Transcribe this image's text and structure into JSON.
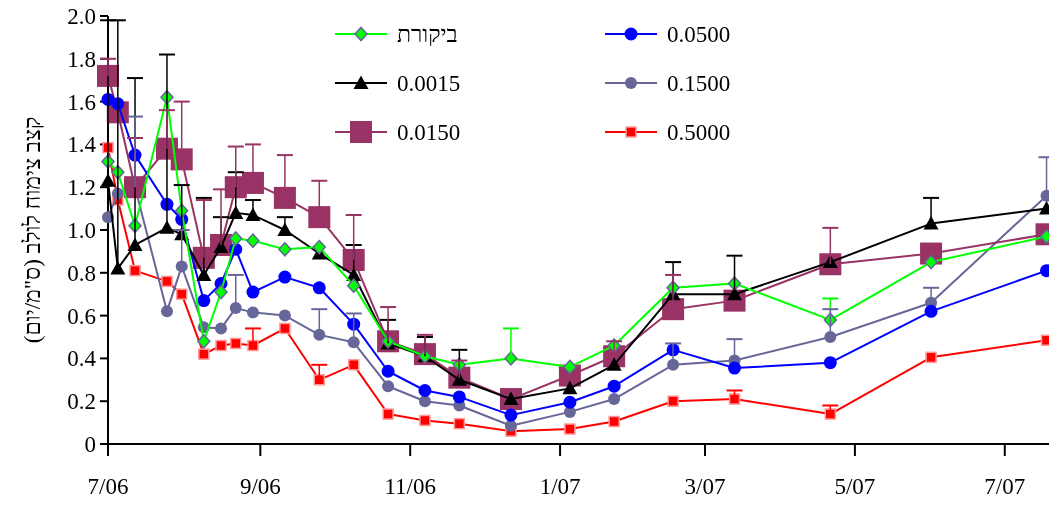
{
  "chart_data": {
    "type": "line",
    "ylabel": "קצב צימוח לולב (ס\"מ/יום)",
    "x": [
      "2006-07-01",
      "2006-07-05",
      "2006-07-12",
      "2006-07-25",
      "2006-07-31",
      "2006-08-09",
      "2006-08-16",
      "2006-08-22",
      "2006-08-29",
      "2006-09-11",
      "2006-09-25",
      "2006-10-09",
      "2006-10-23",
      "2006-11-07",
      "2006-11-21",
      "2006-12-12",
      "2007-01-05",
      "2007-01-23",
      "2007-02-16",
      "2007-03-13",
      "2007-04-21",
      "2007-06-01",
      "2007-07-18"
    ],
    "xlim": [
      "2006-07-01",
      "2007-07-19"
    ],
    "xticks": [
      {
        "value": "2006-07-01",
        "label": "7/06"
      },
      {
        "value": "2006-09-01",
        "label": "9/06"
      },
      {
        "value": "2006-11-01",
        "label": "11/06"
      },
      {
        "value": "2007-01-01",
        "label": "1/07"
      },
      {
        "value": "2007-03-01",
        "label": "3/07"
      },
      {
        "value": "2007-05-01",
        "label": "5/07"
      },
      {
        "value": "2007-07-01",
        "label": "7/07"
      }
    ],
    "ylim": [
      0,
      2
    ],
    "yticks": [
      0,
      0.2,
      0.4,
      0.6,
      0.8,
      {
        "value": 1,
        "label": "1.0"
      },
      1.2,
      1.4,
      1.6,
      1.8,
      {
        "value": 2,
        "label": "2.0"
      }
    ],
    "grid": false,
    "legend": "top",
    "line_style": "solid",
    "series": [
      {
        "name": "ביקורת",
        "color": "#00ff00",
        "marker": "diamond",
        "values": [
          1.32,
          1.27,
          1.02,
          1.62,
          1.09,
          0.48,
          0.71,
          0.96,
          0.95,
          0.91,
          0.92,
          0.74,
          0.48,
          0.41,
          0.37,
          0.4,
          0.36,
          0.46,
          0.73,
          0.75,
          0.58,
          0.85,
          0.97
        ],
        "errors": [
          null,
          null,
          null,
          null,
          null,
          null,
          null,
          null,
          null,
          null,
          null,
          null,
          null,
          null,
          null,
          [
            0.4,
            0.54
          ],
          null,
          null,
          null,
          null,
          [
            0.58,
            0.68
          ],
          null,
          null
        ]
      },
      {
        "name": "0.0015",
        "color": "#000000",
        "marker": "triangle",
        "values": [
          1.23,
          0.82,
          0.93,
          1.01,
          0.98,
          0.79,
          0.92,
          1.08,
          1.07,
          1.0,
          0.89,
          0.79,
          0.47,
          0.41,
          0.3,
          0.21,
          0.26,
          0.37,
          0.7,
          0.7,
          0.85,
          1.03,
          1.1
        ],
        "errors": [
          [
            1.23,
            1.98
          ],
          [
            0.82,
            1.98
          ],
          [
            0.93,
            1.71
          ],
          [
            1.01,
            1.82
          ],
          [
            0.98,
            1.21
          ],
          [
            0.79,
            1.15
          ],
          [
            0.92,
            1.06
          ],
          [
            1.08,
            1.27
          ],
          [
            1.07,
            1.14
          ],
          [
            1.0,
            1.06
          ],
          null,
          [
            0.79,
            0.93
          ],
          [
            0.47,
            0.58
          ],
          [
            0.41,
            0.5
          ],
          [
            0.3,
            0.44
          ],
          null,
          null,
          null,
          [
            0.7,
            0.85
          ],
          [
            0.7,
            0.88
          ],
          null,
          [
            1.03,
            1.15
          ],
          null
        ]
      },
      {
        "name": "0.0150",
        "color": "#993366",
        "marker": "square",
        "values": [
          1.72,
          1.55,
          1.2,
          1.38,
          1.33,
          0.87,
          0.93,
          1.2,
          1.22,
          1.15,
          1.06,
          0.86,
          0.48,
          0.42,
          0.31,
          0.21,
          0.32,
          0.41,
          0.63,
          0.67,
          0.84,
          0.89,
          0.98
        ],
        "errors": [
          [
            1.72,
            1.8
          ],
          null,
          [
            1.2,
            1.43
          ],
          [
            1.38,
            1.56
          ],
          [
            1.33,
            1.6
          ],
          [
            0.87,
            1.14
          ],
          [
            0.93,
            1.19
          ],
          [
            1.2,
            1.39
          ],
          [
            1.22,
            1.4
          ],
          [
            1.15,
            1.35
          ],
          [
            1.06,
            1.23
          ],
          [
            0.86,
            1.07
          ],
          [
            0.48,
            0.64
          ],
          [
            0.42,
            0.51
          ],
          [
            0.31,
            0.39
          ],
          null,
          null,
          [
            0.41,
            0.48
          ],
          [
            0.63,
            0.79
          ],
          null,
          [
            0.84,
            1.01
          ],
          null,
          null
        ]
      },
      {
        "name": "0.0500",
        "color": "#0000ff",
        "marker": "circle",
        "values": [
          1.61,
          1.59,
          1.35,
          1.12,
          1.05,
          0.67,
          0.75,
          0.91,
          0.71,
          0.78,
          0.73,
          0.56,
          0.34,
          0.25,
          0.22,
          0.135,
          0.195,
          0.27,
          0.44,
          0.355,
          0.38,
          0.62,
          0.81
        ]
      },
      {
        "name": "0.1500",
        "color": "#666699",
        "marker": "circle",
        "values": [
          1.06,
          1.17,
          1.2,
          0.62,
          0.83,
          0.545,
          0.54,
          0.635,
          0.615,
          0.6,
          0.51,
          0.475,
          0.27,
          0.2,
          0.18,
          0.085,
          0.15,
          0.21,
          0.37,
          0.39,
          0.5,
          0.66,
          1.16
        ],
        "errors": [
          null,
          null,
          [
            1.2,
            1.53
          ],
          null,
          [
            0.83,
            1.0
          ],
          null,
          null,
          [
            0.635,
            0.79
          ],
          null,
          null,
          [
            0.51,
            0.63
          ],
          [
            0.475,
            0.61
          ],
          null,
          null,
          null,
          null,
          null,
          null,
          [
            0.37,
            0.47
          ],
          [
            0.39,
            0.49
          ],
          [
            0.5,
            0.63
          ],
          [
            0.66,
            0.73
          ],
          [
            1.16,
            1.34
          ]
        ]
      },
      {
        "name": "0.5000",
        "color": "#ff0000",
        "marker": "square",
        "values": [
          1.385,
          1.14,
          0.81,
          0.76,
          0.7,
          0.42,
          0.46,
          0.47,
          0.46,
          0.54,
          0.3,
          0.37,
          0.14,
          0.11,
          0.095,
          0.06,
          0.07,
          0.105,
          0.2,
          0.21,
          0.14,
          0.405,
          0.485
        ],
        "errors": [
          null,
          null,
          null,
          null,
          null,
          null,
          null,
          null,
          [
            0.46,
            0.54
          ],
          null,
          [
            0.3,
            0.37
          ],
          null,
          null,
          null,
          null,
          null,
          null,
          null,
          null,
          [
            0.21,
            0.25
          ],
          [
            0.14,
            0.18
          ],
          null,
          null
        ]
      }
    ]
  }
}
